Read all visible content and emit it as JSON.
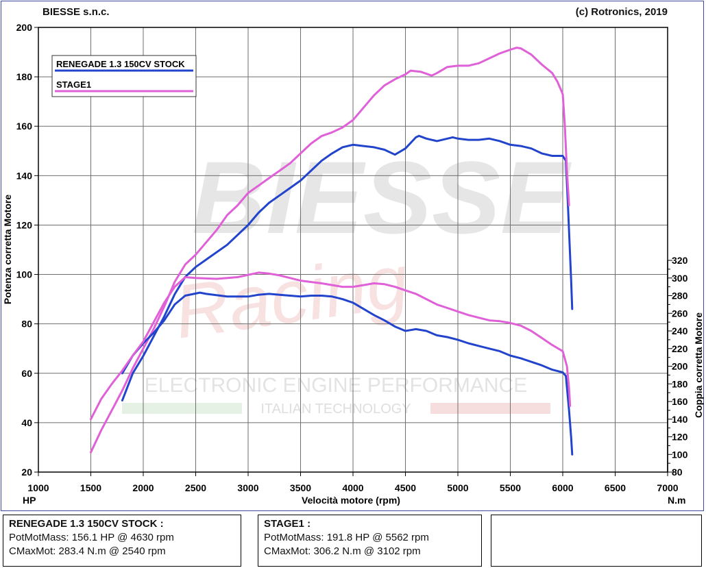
{
  "header": {
    "left": "BIESSE s.n.c.",
    "right": "(c) Rotronics, 2019"
  },
  "watermark": {
    "brand": "BIESSE",
    "script": "Racing",
    "line1": "ELECTRONIC ENGINE PERFORMANCE",
    "line2": "ITALIAN TECHNOLOGY"
  },
  "chart_data": {
    "type": "line",
    "xlabel": "Velocità motore (rpm)",
    "ylabel_left": "Potenza corretta Motore",
    "ylabel_right": "Coppia corretta Motore",
    "left_unit": "HP",
    "right_unit": "N.m",
    "xlim": [
      1000,
      7000
    ],
    "ylim_left": [
      20,
      200
    ],
    "ylim_right": [
      80,
      320
    ],
    "x_ticks": [
      "1000",
      "1500",
      "2000",
      "2500",
      "3000",
      "3500",
      "4000",
      "4500",
      "5000",
      "5500",
      "6000",
      "6500",
      "7000"
    ],
    "y_left_ticks": [
      "20",
      "40",
      "60",
      "80",
      "100",
      "120",
      "140",
      "160",
      "180",
      "200"
    ],
    "y_right_ticks": [
      "80",
      "100",
      "120",
      "140",
      "160",
      "180",
      "200",
      "220",
      "240",
      "260",
      "280",
      "300",
      "320"
    ],
    "grid": true,
    "legend_position": "top-left",
    "colors": {
      "stock": "#2244cc",
      "stage1": "#e060d8"
    },
    "series": [
      {
        "name": "RENEGADE 1.3 150CV STOCK",
        "quantity": "power",
        "axis": "left",
        "color": "#2244cc",
        "points": [
          [
            1800,
            49
          ],
          [
            1900,
            60
          ],
          [
            2000,
            67
          ],
          [
            2100,
            75
          ],
          [
            2200,
            83
          ],
          [
            2300,
            92
          ],
          [
            2400,
            99
          ],
          [
            2500,
            103
          ],
          [
            2600,
            106
          ],
          [
            2800,
            112
          ],
          [
            3000,
            120
          ],
          [
            3100,
            125
          ],
          [
            3200,
            129
          ],
          [
            3300,
            132
          ],
          [
            3400,
            135
          ],
          [
            3500,
            138
          ],
          [
            3600,
            142
          ],
          [
            3700,
            146
          ],
          [
            3800,
            149
          ],
          [
            3900,
            151.5
          ],
          [
            4000,
            152.5
          ],
          [
            4100,
            152
          ],
          [
            4200,
            151.5
          ],
          [
            4300,
            150.5
          ],
          [
            4400,
            148.5
          ],
          [
            4500,
            151
          ],
          [
            4600,
            155.5
          ],
          [
            4630,
            156.1
          ],
          [
            4700,
            155
          ],
          [
            4800,
            154
          ],
          [
            4900,
            155
          ],
          [
            4950,
            155.5
          ],
          [
            5000,
            155
          ],
          [
            5100,
            154.5
          ],
          [
            5200,
            154.5
          ],
          [
            5300,
            155
          ],
          [
            5400,
            154
          ],
          [
            5500,
            152.5
          ],
          [
            5600,
            152
          ],
          [
            5700,
            151
          ],
          [
            5800,
            149
          ],
          [
            5900,
            148
          ],
          [
            6000,
            148
          ],
          [
            6030,
            146
          ],
          [
            6050,
            128
          ],
          [
            6080,
            98
          ],
          [
            6090,
            86
          ]
        ]
      },
      {
        "name": "STAGE1",
        "quantity": "power",
        "axis": "left",
        "color": "#e060d8",
        "points": [
          [
            1500,
            28
          ],
          [
            1600,
            37
          ],
          [
            1700,
            45
          ],
          [
            1800,
            53
          ],
          [
            1900,
            62
          ],
          [
            2000,
            70
          ],
          [
            2100,
            78
          ],
          [
            2200,
            87
          ],
          [
            2300,
            97
          ],
          [
            2400,
            104
          ],
          [
            2500,
            108
          ],
          [
            2600,
            113
          ],
          [
            2700,
            118
          ],
          [
            2800,
            124
          ],
          [
            2900,
            128
          ],
          [
            3000,
            133
          ],
          [
            3100,
            136
          ],
          [
            3200,
            139
          ],
          [
            3300,
            142
          ],
          [
            3400,
            145
          ],
          [
            3500,
            149
          ],
          [
            3600,
            153
          ],
          [
            3700,
            156
          ],
          [
            3800,
            157.5
          ],
          [
            3900,
            159.5
          ],
          [
            4000,
            162.5
          ],
          [
            4100,
            167.5
          ],
          [
            4200,
            172.5
          ],
          [
            4300,
            176.5
          ],
          [
            4400,
            179
          ],
          [
            4500,
            181
          ],
          [
            4550,
            182.5
          ],
          [
            4650,
            182
          ],
          [
            4750,
            180.5
          ],
          [
            4800,
            181.5
          ],
          [
            4900,
            184
          ],
          [
            5000,
            184.5
          ],
          [
            5100,
            184.5
          ],
          [
            5200,
            185.5
          ],
          [
            5300,
            187.5
          ],
          [
            5400,
            189.5
          ],
          [
            5500,
            191
          ],
          [
            5562,
            191.8
          ],
          [
            5600,
            191.5
          ],
          [
            5700,
            189
          ],
          [
            5800,
            185
          ],
          [
            5900,
            181.5
          ],
          [
            5950,
            178
          ],
          [
            6000,
            173
          ],
          [
            6020,
            160
          ],
          [
            6040,
            142
          ],
          [
            6060,
            128
          ]
        ]
      },
      {
        "name": "RENEGADE 1.3 150CV STOCK",
        "quantity": "torque",
        "axis": "right",
        "color": "#2244cc",
        "points": [
          [
            1800,
            192
          ],
          [
            1900,
            212
          ],
          [
            2000,
            226
          ],
          [
            2100,
            238
          ],
          [
            2200,
            252
          ],
          [
            2300,
            270
          ],
          [
            2400,
            280
          ],
          [
            2540,
            283.4
          ],
          [
            2600,
            282
          ],
          [
            2800,
            279
          ],
          [
            3000,
            279
          ],
          [
            3100,
            281
          ],
          [
            3200,
            282
          ],
          [
            3300,
            281
          ],
          [
            3400,
            280
          ],
          [
            3500,
            279
          ],
          [
            3600,
            280
          ],
          [
            3700,
            280
          ],
          [
            3800,
            279
          ],
          [
            3900,
            276
          ],
          [
            4000,
            272
          ],
          [
            4100,
            265
          ],
          [
            4200,
            258
          ],
          [
            4300,
            252
          ],
          [
            4400,
            245
          ],
          [
            4500,
            240
          ],
          [
            4550,
            241
          ],
          [
            4600,
            242
          ],
          [
            4700,
            240
          ],
          [
            4800,
            235
          ],
          [
            4900,
            233
          ],
          [
            5000,
            230
          ],
          [
            5100,
            226
          ],
          [
            5200,
            223
          ],
          [
            5300,
            220
          ],
          [
            5400,
            217
          ],
          [
            5500,
            212
          ],
          [
            5600,
            209
          ],
          [
            5700,
            205
          ],
          [
            5800,
            201
          ],
          [
            5900,
            196
          ],
          [
            6000,
            193
          ],
          [
            6030,
            189
          ],
          [
            6060,
            150
          ],
          [
            6080,
            120
          ],
          [
            6090,
            100
          ]
        ]
      },
      {
        "name": "STAGE1",
        "quantity": "torque",
        "axis": "right",
        "color": "#e060d8",
        "points": [
          [
            1500,
            140
          ],
          [
            1600,
            163
          ],
          [
            1700,
            180
          ],
          [
            1800,
            195
          ],
          [
            1900,
            212
          ],
          [
            2000,
            228
          ],
          [
            2100,
            250
          ],
          [
            2200,
            272
          ],
          [
            2300,
            290
          ],
          [
            2400,
            301
          ],
          [
            2500,
            300
          ],
          [
            2700,
            299
          ],
          [
            2900,
            301
          ],
          [
            3102,
            306.2
          ],
          [
            3200,
            305
          ],
          [
            3300,
            303
          ],
          [
            3500,
            297
          ],
          [
            3700,
            294
          ],
          [
            3900,
            290
          ],
          [
            4000,
            290
          ],
          [
            4100,
            292
          ],
          [
            4200,
            294
          ],
          [
            4300,
            293
          ],
          [
            4400,
            290
          ],
          [
            4500,
            286
          ],
          [
            4600,
            282
          ],
          [
            4700,
            276
          ],
          [
            4800,
            270
          ],
          [
            4900,
            266
          ],
          [
            5000,
            262
          ],
          [
            5100,
            258
          ],
          [
            5200,
            255
          ],
          [
            5300,
            252
          ],
          [
            5400,
            251
          ],
          [
            5500,
            249
          ],
          [
            5600,
            246
          ],
          [
            5700,
            240
          ],
          [
            5800,
            232
          ],
          [
            5900,
            224
          ],
          [
            6000,
            217
          ],
          [
            6040,
            200
          ],
          [
            6060,
            175
          ],
          [
            6070,
            155
          ]
        ]
      }
    ]
  },
  "summary": [
    {
      "title": "RENEGADE 1.3 150CV STOCK :",
      "line1": "PotMotMass: 156.1 HP @ 4630 rpm",
      "line2": "CMaxMot: 283.4 N.m @ 2540 rpm"
    },
    {
      "title": "STAGE1 :",
      "line1": "PotMotMass: 191.8 HP @ 5562 rpm",
      "line2": "CMaxMot: 306.2 N.m @ 3102 rpm"
    }
  ]
}
